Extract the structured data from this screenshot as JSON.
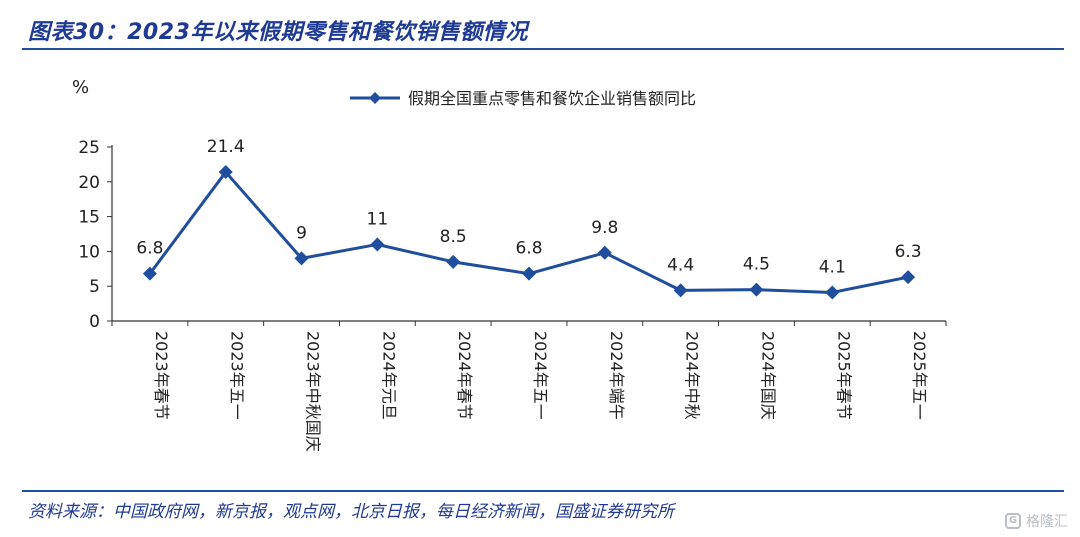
{
  "header": {
    "title": "图表30：2023年以来假期零售和餐饮销售额情况"
  },
  "footer": {
    "source": "资料来源：中国政府网，新京报，观点网，北京日报，每日经济新闻，国盛证券研究所",
    "watermark": "格隆汇",
    "watermark_glyph": "G"
  },
  "colors": {
    "series": "#1f4e9c",
    "title": "#1f3a93",
    "axis": "#333333"
  },
  "chart_data": {
    "type": "line",
    "ylabel": "%",
    "ylim": [
      0,
      25
    ],
    "yticks": [
      "0",
      "5",
      "10",
      "15",
      "20",
      "25"
    ],
    "categories": [
      "2023年春节",
      "2023年五一",
      "2023年中秋国庆",
      "2024年元旦",
      "2024年春节",
      "2024年五一",
      "2024年端午",
      "2024年中秋",
      "2024年国庆",
      "2025年春节",
      "2025年五一"
    ],
    "series": [
      {
        "name": "假期全国重点零售和餐饮企业销售额同比",
        "values": [
          6.8,
          21.4,
          9,
          11,
          8.5,
          6.8,
          9.8,
          4.4,
          4.5,
          4.1,
          6.3
        ],
        "labels": [
          "6.8",
          "21.4",
          "9",
          "11",
          "8.5",
          "6.8",
          "9.8",
          "4.4",
          "4.5",
          "4.1",
          "6.3"
        ]
      }
    ],
    "legend_position": "top-center",
    "marker": "diamond",
    "grid": false
  }
}
